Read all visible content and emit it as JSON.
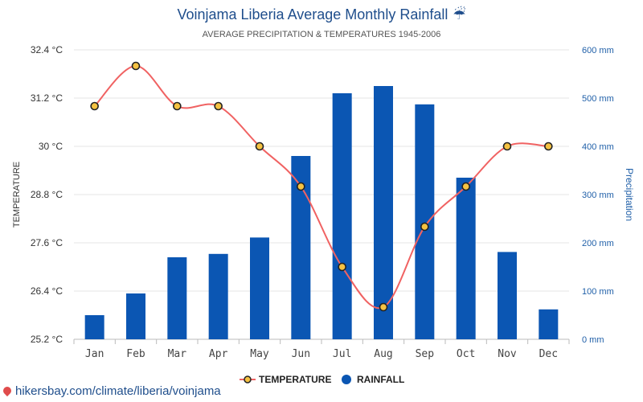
{
  "chart_data": {
    "type": "bar+line",
    "title": "Voinjama Liberia Average Monthly Rainfall",
    "title_icon": "umbrella-rain-icon",
    "subtitle": "AVERAGE PRECIPITATION & TEMPERATURES 1945-2006",
    "categories": [
      "Jan",
      "Feb",
      "Mar",
      "Apr",
      "May",
      "Jun",
      "Jul",
      "Aug",
      "Sep",
      "Oct",
      "Nov",
      "Dec"
    ],
    "series": [
      {
        "name": "TEMPERATURE",
        "type": "line",
        "axis": "left",
        "unit": "°C",
        "color": "#f06262",
        "values": [
          31,
          32,
          31,
          31,
          30,
          29,
          27,
          26,
          28,
          29,
          30,
          30
        ]
      },
      {
        "name": "RAINFALL",
        "type": "bar",
        "axis": "right",
        "unit": "mm",
        "color": "#0b56b3",
        "values": [
          50,
          95,
          170,
          177,
          211,
          380,
          510,
          525,
          487,
          335,
          181,
          62
        ]
      }
    ],
    "y_left": {
      "label": "TEMPERATURE",
      "min": 25.2,
      "max": 32.4,
      "ticks": [
        "25.2 °C",
        "26.4 °C",
        "27.6 °C",
        "28.8 °C",
        "30 °C",
        "31.2 °C",
        "32.4 °C"
      ]
    },
    "y_right": {
      "label": "Precipitation",
      "min": 0,
      "max": 600,
      "ticks": [
        "0 mm",
        "100 mm",
        "200 mm",
        "300 mm",
        "400 mm",
        "500 mm",
        "600 mm"
      ]
    },
    "legend": [
      "TEMPERATURE",
      "RAINFALL"
    ],
    "legend_position": "bottom",
    "grid": true
  },
  "source": {
    "text": "hikersbay.com/climate/liberia/voinjama",
    "icon": "location-pin-icon"
  }
}
